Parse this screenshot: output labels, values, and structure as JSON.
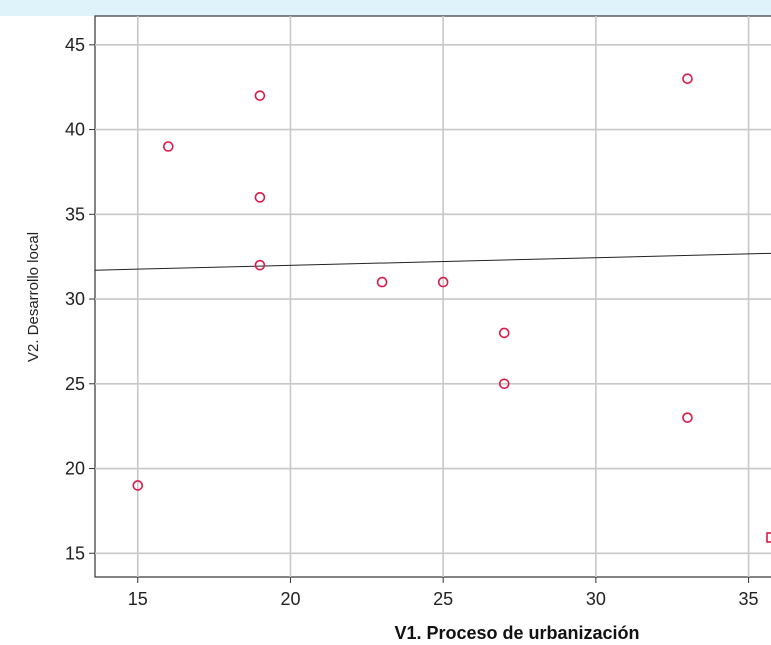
{
  "chart_data": {
    "type": "scatter",
    "title": "",
    "xlabel": "V1. Proceso de urbanización",
    "ylabel": "V2. Desarrollo local",
    "xlim": [
      13.6,
      35.8
    ],
    "ylim": [
      13.6,
      46.7
    ],
    "x_ticks": [
      15,
      20,
      25,
      30,
      35
    ],
    "y_ticks": [
      15,
      20,
      25,
      30,
      35,
      40,
      45
    ],
    "x_tick_labels": [
      "15",
      "20",
      "25",
      "30",
      "35"
    ],
    "y_tick_labels": [
      "15",
      "20",
      "25",
      "30",
      "35",
      "40",
      "45"
    ],
    "grid": true,
    "point_color": "#d81b4a",
    "points": [
      {
        "x": 15,
        "y": 19
      },
      {
        "x": 16,
        "y": 39
      },
      {
        "x": 19,
        "y": 42
      },
      {
        "x": 19,
        "y": 36
      },
      {
        "x": 19,
        "y": 32
      },
      {
        "x": 23,
        "y": 31
      },
      {
        "x": 25,
        "y": 31
      },
      {
        "x": 27,
        "y": 28
      },
      {
        "x": 27,
        "y": 25
      },
      {
        "x": 33,
        "y": 43
      },
      {
        "x": 33,
        "y": 23
      }
    ],
    "fit_line": {
      "x": [
        13.6,
        35.8
      ],
      "y": [
        31.7,
        32.7
      ]
    }
  }
}
